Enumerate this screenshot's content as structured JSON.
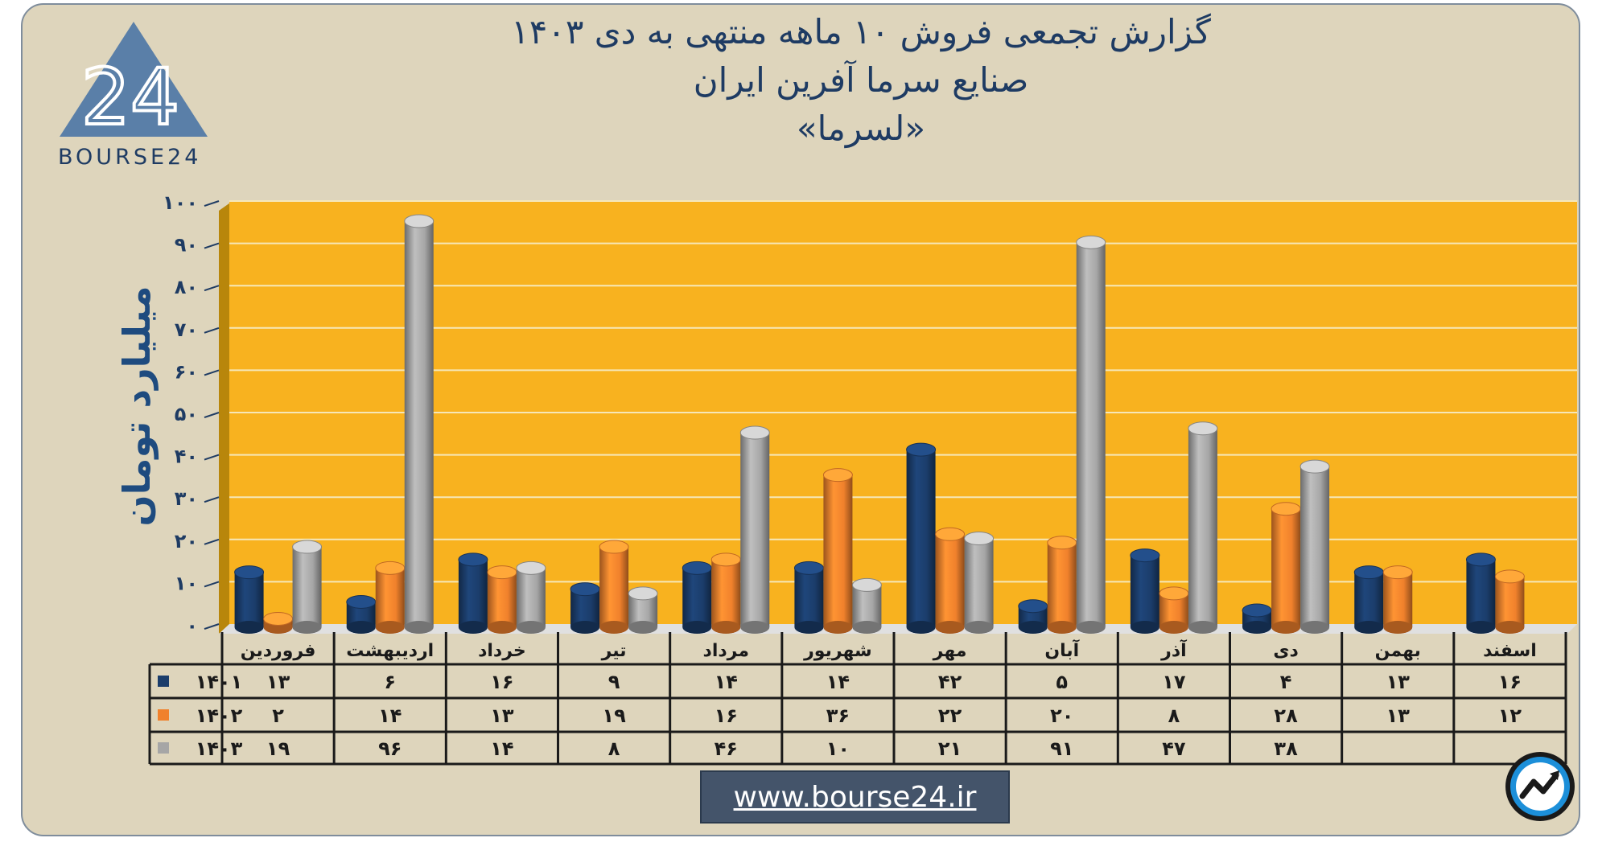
{
  "header": {
    "title_line1": "گزارش تجمعی فروش ۱۰ ماهه منتهی به دی ۱۴۰۳",
    "title_line2": "صنایع سرما آفرین ایران",
    "title_line3": "«لسرما»"
  },
  "logo": {
    "text": "BOURSE24",
    "mark": "24"
  },
  "footer": {
    "url": "www.bourse24.ir"
  },
  "icons": {
    "logo": "bourse24-triangle-logo",
    "corner": "trend-chart-icon"
  },
  "colors": {
    "card_bg": "#ded5bc",
    "plot_bg": "#f8b21f",
    "series_1401": "#1b3d6b",
    "series_1402": "#f0812c",
    "series_1403": "#a6a6a6",
    "title": "#1e3b63"
  },
  "chart_data": {
    "type": "bar",
    "ylabel": "میلیارد تومان",
    "ylim": [
      0,
      100
    ],
    "yticks": [
      "۰",
      "۱۰",
      "۲۰",
      "۳۰",
      "۴۰",
      "۵۰",
      "۶۰",
      "۷۰",
      "۸۰",
      "۹۰",
      "۱۰۰"
    ],
    "ytick_values": [
      0,
      10,
      20,
      30,
      40,
      50,
      60,
      70,
      80,
      90,
      100
    ],
    "grid": true,
    "legend": "table-left",
    "categories": [
      "فروردین",
      "اردیبهشت",
      "خرداد",
      "تیر",
      "مرداد",
      "شهریور",
      "مهر",
      "آبان",
      "آذر",
      "دی",
      "بهمن",
      "اسفند"
    ],
    "series": [
      {
        "name": "۱۴۰۱",
        "color": "#1b3d6b",
        "values": [
          13,
          6,
          16,
          9,
          14,
          14,
          42,
          5,
          17,
          4,
          13,
          16
        ],
        "labels": [
          "۱۳",
          "۶",
          "۱۶",
          "۹",
          "۱۴",
          "۱۴",
          "۴۲",
          "۵",
          "۱۷",
          "۴",
          "۱۳",
          "۱۶"
        ]
      },
      {
        "name": "۱۴۰۲",
        "color": "#f0812c",
        "values": [
          2,
          14,
          13,
          19,
          16,
          36,
          22,
          20,
          8,
          28,
          13,
          12
        ],
        "labels": [
          "۲",
          "۱۴",
          "۱۳",
          "۱۹",
          "۱۶",
          "۳۶",
          "۲۲",
          "۲۰",
          "۸",
          "۲۸",
          "۱۳",
          "۱۲"
        ]
      },
      {
        "name": "۱۴۰۳",
        "color": "#a6a6a6",
        "values": [
          19,
          96,
          14,
          8,
          46,
          10,
          21,
          91,
          47,
          38,
          null,
          null
        ],
        "labels": [
          "۱۹",
          "۹۶",
          "۱۴",
          "۸",
          "۴۶",
          "۱۰",
          "۲۱",
          "۹۱",
          "۴۷",
          "۳۸",
          "",
          ""
        ]
      }
    ]
  }
}
